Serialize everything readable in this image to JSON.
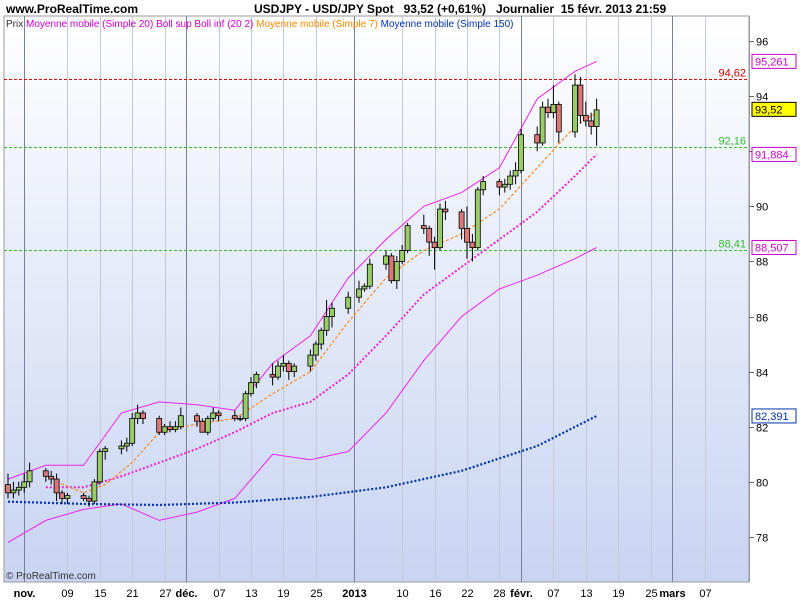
{
  "header": {
    "site": "www.ProRealTime.com",
    "instrument": "USDJPY - USD/JPY Spot",
    "last_value": "93,52 (+0,61%)",
    "period": "Journalier",
    "datetime": "15 févr. 2013 21:59"
  },
  "legend": [
    {
      "text": "Prix",
      "color": "#333333"
    },
    {
      "text": "Moyenne mobile (Simple 20)",
      "color": "#cc00cc"
    },
    {
      "text": "Boll sup Boll inf (20 2)",
      "color": "#cc00cc"
    },
    {
      "text": "Moyenne mobile (Simple 7)",
      "color": "#ff8800"
    },
    {
      "text": "Moyenne mobile (Simple 150)",
      "color": "#0033aa"
    }
  ],
  "copyright": "© ProRealTime.com",
  "colors": {
    "up": "#99cc66",
    "down": "#dd7777",
    "bollinger": "#ee22ee",
    "ma20": "#ee22cc",
    "ma7": "#ff8822",
    "ma150": "#0033aa",
    "resistance": "#dd0000",
    "support": "#33bb33"
  },
  "chart_data": {
    "type": "candlestick",
    "ylim": [
      76.8,
      96.4
    ],
    "yticks": [
      78,
      80,
      82,
      84,
      86,
      88,
      90,
      92,
      94,
      96
    ],
    "x_start": "2012-10-29",
    "xticks": [
      {
        "label": "nov.",
        "date": "2012-11-01",
        "bold": true
      },
      {
        "label": "09",
        "date": "2012-11-09"
      },
      {
        "label": "15",
        "date": "2012-11-15"
      },
      {
        "label": "21",
        "date": "2012-11-21"
      },
      {
        "label": "27",
        "date": "2012-11-27"
      },
      {
        "label": "déc.",
        "date": "2012-12-01",
        "bold": true
      },
      {
        "label": "07",
        "date": "2012-12-07"
      },
      {
        "label": "13",
        "date": "2012-12-13"
      },
      {
        "label": "19",
        "date": "2012-12-19"
      },
      {
        "label": "25",
        "date": "2012-12-25"
      },
      {
        "label": "2013",
        "date": "2013-01-01",
        "bold": true
      },
      {
        "label": "10",
        "date": "2013-01-10"
      },
      {
        "label": "16",
        "date": "2013-01-16"
      },
      {
        "label": "22",
        "date": "2013-01-22"
      },
      {
        "label": "28",
        "date": "2013-01-28"
      },
      {
        "label": "févr.",
        "date": "2013-02-01",
        "bold": true
      },
      {
        "label": "07",
        "date": "2013-02-07"
      },
      {
        "label": "13",
        "date": "2013-02-13"
      },
      {
        "label": "19",
        "date": "2013-02-19"
      },
      {
        "label": "25",
        "date": "2013-02-25"
      },
      {
        "label": "mars",
        "date": "2013-03-01",
        "bold": true
      },
      {
        "label": "07",
        "date": "2013-03-07"
      }
    ],
    "candles": [
      {
        "date": "2012-10-29",
        "o": 79.9,
        "h": 80.3,
        "l": 79.4,
        "c": 79.6
      },
      {
        "date": "2012-10-30",
        "o": 79.6,
        "h": 80.0,
        "l": 79.4,
        "c": 79.7
      },
      {
        "date": "2012-10-31",
        "o": 79.7,
        "h": 80.0,
        "l": 79.5,
        "c": 79.8
      },
      {
        "date": "2012-11-01",
        "o": 79.8,
        "h": 80.3,
        "l": 79.6,
        "c": 80.0
      },
      {
        "date": "2012-11-02",
        "o": 80.0,
        "h": 80.7,
        "l": 79.8,
        "c": 80.4
      },
      {
        "date": "2012-11-05",
        "o": 80.4,
        "h": 80.5,
        "l": 80.0,
        "c": 80.2
      },
      {
        "date": "2012-11-06",
        "o": 80.2,
        "h": 80.4,
        "l": 79.9,
        "c": 80.1
      },
      {
        "date": "2012-11-07",
        "o": 80.1,
        "h": 80.3,
        "l": 79.3,
        "c": 79.6
      },
      {
        "date": "2012-11-08",
        "o": 79.6,
        "h": 79.7,
        "l": 79.2,
        "c": 79.4
      },
      {
        "date": "2012-11-09",
        "o": 79.4,
        "h": 79.6,
        "l": 79.2,
        "c": 79.5
      },
      {
        "date": "2012-11-12",
        "o": 79.5,
        "h": 79.6,
        "l": 79.3,
        "c": 79.4
      },
      {
        "date": "2012-11-13",
        "o": 79.4,
        "h": 79.5,
        "l": 79.1,
        "c": 79.3
      },
      {
        "date": "2012-11-14",
        "o": 79.3,
        "h": 80.1,
        "l": 79.2,
        "c": 80.0
      },
      {
        "date": "2012-11-15",
        "o": 80.0,
        "h": 81.2,
        "l": 79.9,
        "c": 81.1
      },
      {
        "date": "2012-11-16",
        "o": 81.1,
        "h": 81.3,
        "l": 80.8,
        "c": 81.2
      },
      {
        "date": "2012-11-19",
        "o": 81.2,
        "h": 81.5,
        "l": 81.0,
        "c": 81.3
      },
      {
        "date": "2012-11-20",
        "o": 81.3,
        "h": 81.6,
        "l": 81.1,
        "c": 81.4
      },
      {
        "date": "2012-11-21",
        "o": 81.4,
        "h": 82.5,
        "l": 81.3,
        "c": 82.3
      },
      {
        "date": "2012-11-22",
        "o": 82.3,
        "h": 82.8,
        "l": 82.1,
        "c": 82.5
      },
      {
        "date": "2012-11-23",
        "o": 82.5,
        "h": 82.6,
        "l": 82.1,
        "c": 82.3
      },
      {
        "date": "2012-11-26",
        "o": 82.3,
        "h": 82.4,
        "l": 81.7,
        "c": 81.8
      },
      {
        "date": "2012-11-27",
        "o": 81.8,
        "h": 82.1,
        "l": 81.7,
        "c": 82.0
      },
      {
        "date": "2012-11-28",
        "o": 82.0,
        "h": 82.2,
        "l": 81.8,
        "c": 81.9
      },
      {
        "date": "2012-11-29",
        "o": 81.9,
        "h": 82.2,
        "l": 81.8,
        "c": 82.0
      },
      {
        "date": "2012-11-30",
        "o": 82.0,
        "h": 82.7,
        "l": 81.9,
        "c": 82.4
      },
      {
        "date": "2012-12-03",
        "o": 82.4,
        "h": 82.5,
        "l": 82.0,
        "c": 82.2
      },
      {
        "date": "2012-12-04",
        "o": 82.2,
        "h": 82.3,
        "l": 81.8,
        "c": 81.8
      },
      {
        "date": "2012-12-05",
        "o": 81.8,
        "h": 82.4,
        "l": 81.7,
        "c": 82.3
      },
      {
        "date": "2012-12-06",
        "o": 82.3,
        "h": 82.7,
        "l": 82.2,
        "c": 82.5
      },
      {
        "date": "2012-12-07",
        "o": 82.5,
        "h": 82.6,
        "l": 82.2,
        "c": 82.4
      },
      {
        "date": "2012-12-10",
        "o": 82.4,
        "h": 82.6,
        "l": 82.2,
        "c": 82.3
      },
      {
        "date": "2012-12-11",
        "o": 82.3,
        "h": 82.4,
        "l": 82.2,
        "c": 82.3
      },
      {
        "date": "2012-12-12",
        "o": 82.3,
        "h": 83.3,
        "l": 82.2,
        "c": 83.2
      },
      {
        "date": "2012-12-13",
        "o": 83.2,
        "h": 83.8,
        "l": 83.1,
        "c": 83.6
      },
      {
        "date": "2012-12-14",
        "o": 83.6,
        "h": 84.0,
        "l": 83.4,
        "c": 83.9
      },
      {
        "date": "2012-12-17",
        "o": 83.9,
        "h": 84.3,
        "l": 83.5,
        "c": 83.8
      },
      {
        "date": "2012-12-18",
        "o": 83.8,
        "h": 84.4,
        "l": 83.7,
        "c": 84.2
      },
      {
        "date": "2012-12-19",
        "o": 84.2,
        "h": 84.6,
        "l": 84.0,
        "c": 84.3
      },
      {
        "date": "2012-12-20",
        "o": 84.3,
        "h": 84.4,
        "l": 83.7,
        "c": 84.0
      },
      {
        "date": "2012-12-21",
        "o": 84.0,
        "h": 84.3,
        "l": 83.8,
        "c": 84.2
      },
      {
        "date": "2012-12-24",
        "o": 84.2,
        "h": 84.8,
        "l": 84.0,
        "c": 84.6
      },
      {
        "date": "2012-12-25",
        "o": 84.6,
        "h": 85.1,
        "l": 84.4,
        "c": 85.0
      },
      {
        "date": "2012-12-26",
        "o": 85.0,
        "h": 85.6,
        "l": 84.8,
        "c": 85.5
      },
      {
        "date": "2012-12-27",
        "o": 85.5,
        "h": 86.6,
        "l": 85.3,
        "c": 86.0
      },
      {
        "date": "2012-12-28",
        "o": 86.0,
        "h": 86.5,
        "l": 85.6,
        "c": 86.3
      },
      {
        "date": "2012-12-31",
        "o": 86.3,
        "h": 86.9,
        "l": 86.1,
        "c": 86.7
      },
      {
        "date": "2013-01-02",
        "o": 86.7,
        "h": 87.3,
        "l": 86.5,
        "c": 87.0
      },
      {
        "date": "2013-01-03",
        "o": 87.0,
        "h": 87.2,
        "l": 86.9,
        "c": 87.1
      },
      {
        "date": "2013-01-04",
        "o": 87.1,
        "h": 88.1,
        "l": 87.0,
        "c": 87.9
      },
      {
        "date": "2013-01-07",
        "o": 87.9,
        "h": 88.4,
        "l": 87.7,
        "c": 88.2
      },
      {
        "date": "2013-01-08",
        "o": 88.2,
        "h": 88.3,
        "l": 87.2,
        "c": 87.3
      },
      {
        "date": "2013-01-09",
        "o": 87.3,
        "h": 88.2,
        "l": 87.0,
        "c": 88.0
      },
      {
        "date": "2013-01-10",
        "o": 88.0,
        "h": 88.6,
        "l": 87.9,
        "c": 88.4
      },
      {
        "date": "2013-01-11",
        "o": 88.4,
        "h": 89.4,
        "l": 88.3,
        "c": 89.3
      },
      {
        "date": "2013-01-14",
        "o": 89.3,
        "h": 89.7,
        "l": 89.0,
        "c": 89.2
      },
      {
        "date": "2013-01-15",
        "o": 89.2,
        "h": 89.3,
        "l": 88.2,
        "c": 88.7
      },
      {
        "date": "2013-01-16",
        "o": 88.7,
        "h": 88.9,
        "l": 87.7,
        "c": 88.5
      },
      {
        "date": "2013-01-17",
        "o": 88.5,
        "h": 90.1,
        "l": 88.4,
        "c": 89.9
      },
      {
        "date": "2013-01-18",
        "o": 89.9,
        "h": 90.2,
        "l": 89.5,
        "c": 89.8
      },
      {
        "date": "2013-01-21",
        "o": 89.8,
        "h": 89.9,
        "l": 88.8,
        "c": 89.2
      },
      {
        "date": "2013-01-22",
        "o": 89.2,
        "h": 90.0,
        "l": 88.1,
        "c": 88.7
      },
      {
        "date": "2013-01-23",
        "o": 88.7,
        "h": 89.0,
        "l": 88.0,
        "c": 88.5
      },
      {
        "date": "2013-01-24",
        "o": 88.5,
        "h": 90.7,
        "l": 88.4,
        "c": 90.6
      },
      {
        "date": "2013-01-25",
        "o": 90.6,
        "h": 91.1,
        "l": 90.4,
        "c": 90.9
      },
      {
        "date": "2013-01-28",
        "o": 90.9,
        "h": 91.0,
        "l": 90.4,
        "c": 90.7
      },
      {
        "date": "2013-01-29",
        "o": 90.7,
        "h": 91.0,
        "l": 90.5,
        "c": 90.8
      },
      {
        "date": "2013-01-30",
        "o": 90.8,
        "h": 91.3,
        "l": 90.6,
        "c": 91.1
      },
      {
        "date": "2013-01-31",
        "o": 91.1,
        "h": 91.6,
        "l": 90.8,
        "c": 91.3
      },
      {
        "date": "2013-02-01",
        "o": 91.3,
        "h": 92.8,
        "l": 91.2,
        "c": 92.6
      },
      {
        "date": "2013-02-04",
        "o": 92.6,
        "h": 92.9,
        "l": 92.0,
        "c": 92.3
      },
      {
        "date": "2013-02-05",
        "o": 92.3,
        "h": 93.8,
        "l": 92.2,
        "c": 93.6
      },
      {
        "date": "2013-02-06",
        "o": 93.6,
        "h": 93.9,
        "l": 93.2,
        "c": 93.4
      },
      {
        "date": "2013-02-07",
        "o": 93.4,
        "h": 94.4,
        "l": 93.2,
        "c": 93.7
      },
      {
        "date": "2013-02-08",
        "o": 93.7,
        "h": 93.8,
        "l": 92.3,
        "c": 92.7
      },
      {
        "date": "2013-02-11",
        "o": 92.7,
        "h": 94.8,
        "l": 92.5,
        "c": 94.4
      },
      {
        "date": "2013-02-12",
        "o": 94.4,
        "h": 94.7,
        "l": 93.0,
        "c": 93.3
      },
      {
        "date": "2013-02-13",
        "o": 93.3,
        "h": 93.8,
        "l": 92.9,
        "c": 93.1
      },
      {
        "date": "2013-02-14",
        "o": 93.1,
        "h": 93.4,
        "l": 92.6,
        "c": 92.9
      },
      {
        "date": "2013-02-15",
        "o": 92.9,
        "h": 93.9,
        "l": 92.2,
        "c": 93.5
      }
    ],
    "bollinger_upper": [
      {
        "date": "2012-10-29",
        "v": 80.1
      },
      {
        "date": "2012-11-05",
        "v": 80.6
      },
      {
        "date": "2012-11-12",
        "v": 80.6
      },
      {
        "date": "2012-11-19",
        "v": 82.5
      },
      {
        "date": "2012-11-26",
        "v": 82.9
      },
      {
        "date": "2012-12-03",
        "v": 82.8
      },
      {
        "date": "2012-12-10",
        "v": 82.6
      },
      {
        "date": "2012-12-17",
        "v": 84.3
      },
      {
        "date": "2012-12-24",
        "v": 85.3
      },
      {
        "date": "2012-12-31",
        "v": 87.4
      },
      {
        "date": "2013-01-07",
        "v": 88.8
      },
      {
        "date": "2013-01-14",
        "v": 90.0
      },
      {
        "date": "2013-01-21",
        "v": 90.5
      },
      {
        "date": "2013-01-28",
        "v": 91.4
      },
      {
        "date": "2013-02-04",
        "v": 93.9
      },
      {
        "date": "2013-02-11",
        "v": 94.9
      },
      {
        "date": "2013-02-15",
        "v": 95.261
      }
    ],
    "bollinger_lower": [
      {
        "date": "2012-10-29",
        "v": 77.8
      },
      {
        "date": "2012-11-05",
        "v": 78.6
      },
      {
        "date": "2012-11-12",
        "v": 79.0
      },
      {
        "date": "2012-11-19",
        "v": 79.2
      },
      {
        "date": "2012-11-26",
        "v": 78.6
      },
      {
        "date": "2012-12-03",
        "v": 78.9
      },
      {
        "date": "2012-12-10",
        "v": 79.4
      },
      {
        "date": "2012-12-17",
        "v": 81.0
      },
      {
        "date": "2012-12-24",
        "v": 80.8
      },
      {
        "date": "2012-12-31",
        "v": 81.1
      },
      {
        "date": "2013-01-07",
        "v": 82.5
      },
      {
        "date": "2013-01-14",
        "v": 84.4
      },
      {
        "date": "2013-01-21",
        "v": 86.0
      },
      {
        "date": "2013-01-28",
        "v": 87.0
      },
      {
        "date": "2013-02-04",
        "v": 87.5
      },
      {
        "date": "2013-02-11",
        "v": 88.1
      },
      {
        "date": "2013-02-15",
        "v": 88.507
      }
    ],
    "ma20": [
      {
        "date": "2012-11-05",
        "v": 79.8
      },
      {
        "date": "2012-11-12",
        "v": 79.8
      },
      {
        "date": "2012-11-19",
        "v": 80.2
      },
      {
        "date": "2012-11-26",
        "v": 80.7
      },
      {
        "date": "2012-12-03",
        "v": 81.2
      },
      {
        "date": "2012-12-10",
        "v": 81.8
      },
      {
        "date": "2012-12-17",
        "v": 82.5
      },
      {
        "date": "2012-12-24",
        "v": 82.9
      },
      {
        "date": "2012-12-31",
        "v": 83.9
      },
      {
        "date": "2013-01-07",
        "v": 85.3
      },
      {
        "date": "2013-01-14",
        "v": 86.8
      },
      {
        "date": "2013-01-21",
        "v": 87.8
      },
      {
        "date": "2013-01-28",
        "v": 88.8
      },
      {
        "date": "2013-02-04",
        "v": 89.8
      },
      {
        "date": "2013-02-11",
        "v": 91.1
      },
      {
        "date": "2013-02-15",
        "v": 91.884
      }
    ],
    "ma7": [
      {
        "date": "2012-11-07",
        "v": 80.0
      },
      {
        "date": "2012-11-12",
        "v": 79.6
      },
      {
        "date": "2012-11-16",
        "v": 79.9
      },
      {
        "date": "2012-11-21",
        "v": 80.7
      },
      {
        "date": "2012-11-26",
        "v": 81.8
      },
      {
        "date": "2012-12-03",
        "v": 82.1
      },
      {
        "date": "2012-12-10",
        "v": 82.3
      },
      {
        "date": "2012-12-17",
        "v": 83.2
      },
      {
        "date": "2012-12-24",
        "v": 84.0
      },
      {
        "date": "2012-12-31",
        "v": 85.8
      },
      {
        "date": "2013-01-07",
        "v": 87.4
      },
      {
        "date": "2013-01-14",
        "v": 88.4
      },
      {
        "date": "2013-01-21",
        "v": 89.0
      },
      {
        "date": "2013-01-28",
        "v": 89.9
      },
      {
        "date": "2013-02-04",
        "v": 91.4
      },
      {
        "date": "2013-02-11",
        "v": 92.9
      },
      {
        "date": "2013-02-15",
        "v": 93.4
      }
    ],
    "ma150": [
      {
        "date": "2012-10-29",
        "v": 79.28
      },
      {
        "date": "2012-11-12",
        "v": 79.2
      },
      {
        "date": "2012-11-26",
        "v": 79.16
      },
      {
        "date": "2012-12-10",
        "v": 79.25
      },
      {
        "date": "2012-12-24",
        "v": 79.45
      },
      {
        "date": "2013-01-07",
        "v": 79.8
      },
      {
        "date": "2013-01-21",
        "v": 80.4
      },
      {
        "date": "2013-02-04",
        "v": 81.3
      },
      {
        "date": "2013-02-15",
        "v": 82.391
      }
    ],
    "hlines": [
      {
        "value": 94.62,
        "label": "94,62",
        "kind": "resistance"
      },
      {
        "value": 92.16,
        "label": "92,16",
        "kind": "support"
      },
      {
        "value": 88.41,
        "label": "88,41",
        "kind": "support"
      }
    ],
    "price_badges": [
      {
        "value": 95.261,
        "label": "95,261",
        "border": "#cc00cc",
        "bg": "#ffffff",
        "fg": "#cc00cc"
      },
      {
        "value": 93.52,
        "label": "93,52",
        "border": "#000000",
        "bg": "#ffff00",
        "fg": "#000000"
      },
      {
        "value": 91.884,
        "label": "91,884",
        "border": "#cc00cc",
        "bg": "#ffffff",
        "fg": "#cc00cc"
      },
      {
        "value": 88.507,
        "label": "88,507",
        "border": "#cc00cc",
        "bg": "#ffffff",
        "fg": "#cc00cc"
      },
      {
        "value": 82.391,
        "label": "82,391",
        "border": "#0033aa",
        "bg": "#ffffff",
        "fg": "#0033aa"
      }
    ]
  }
}
